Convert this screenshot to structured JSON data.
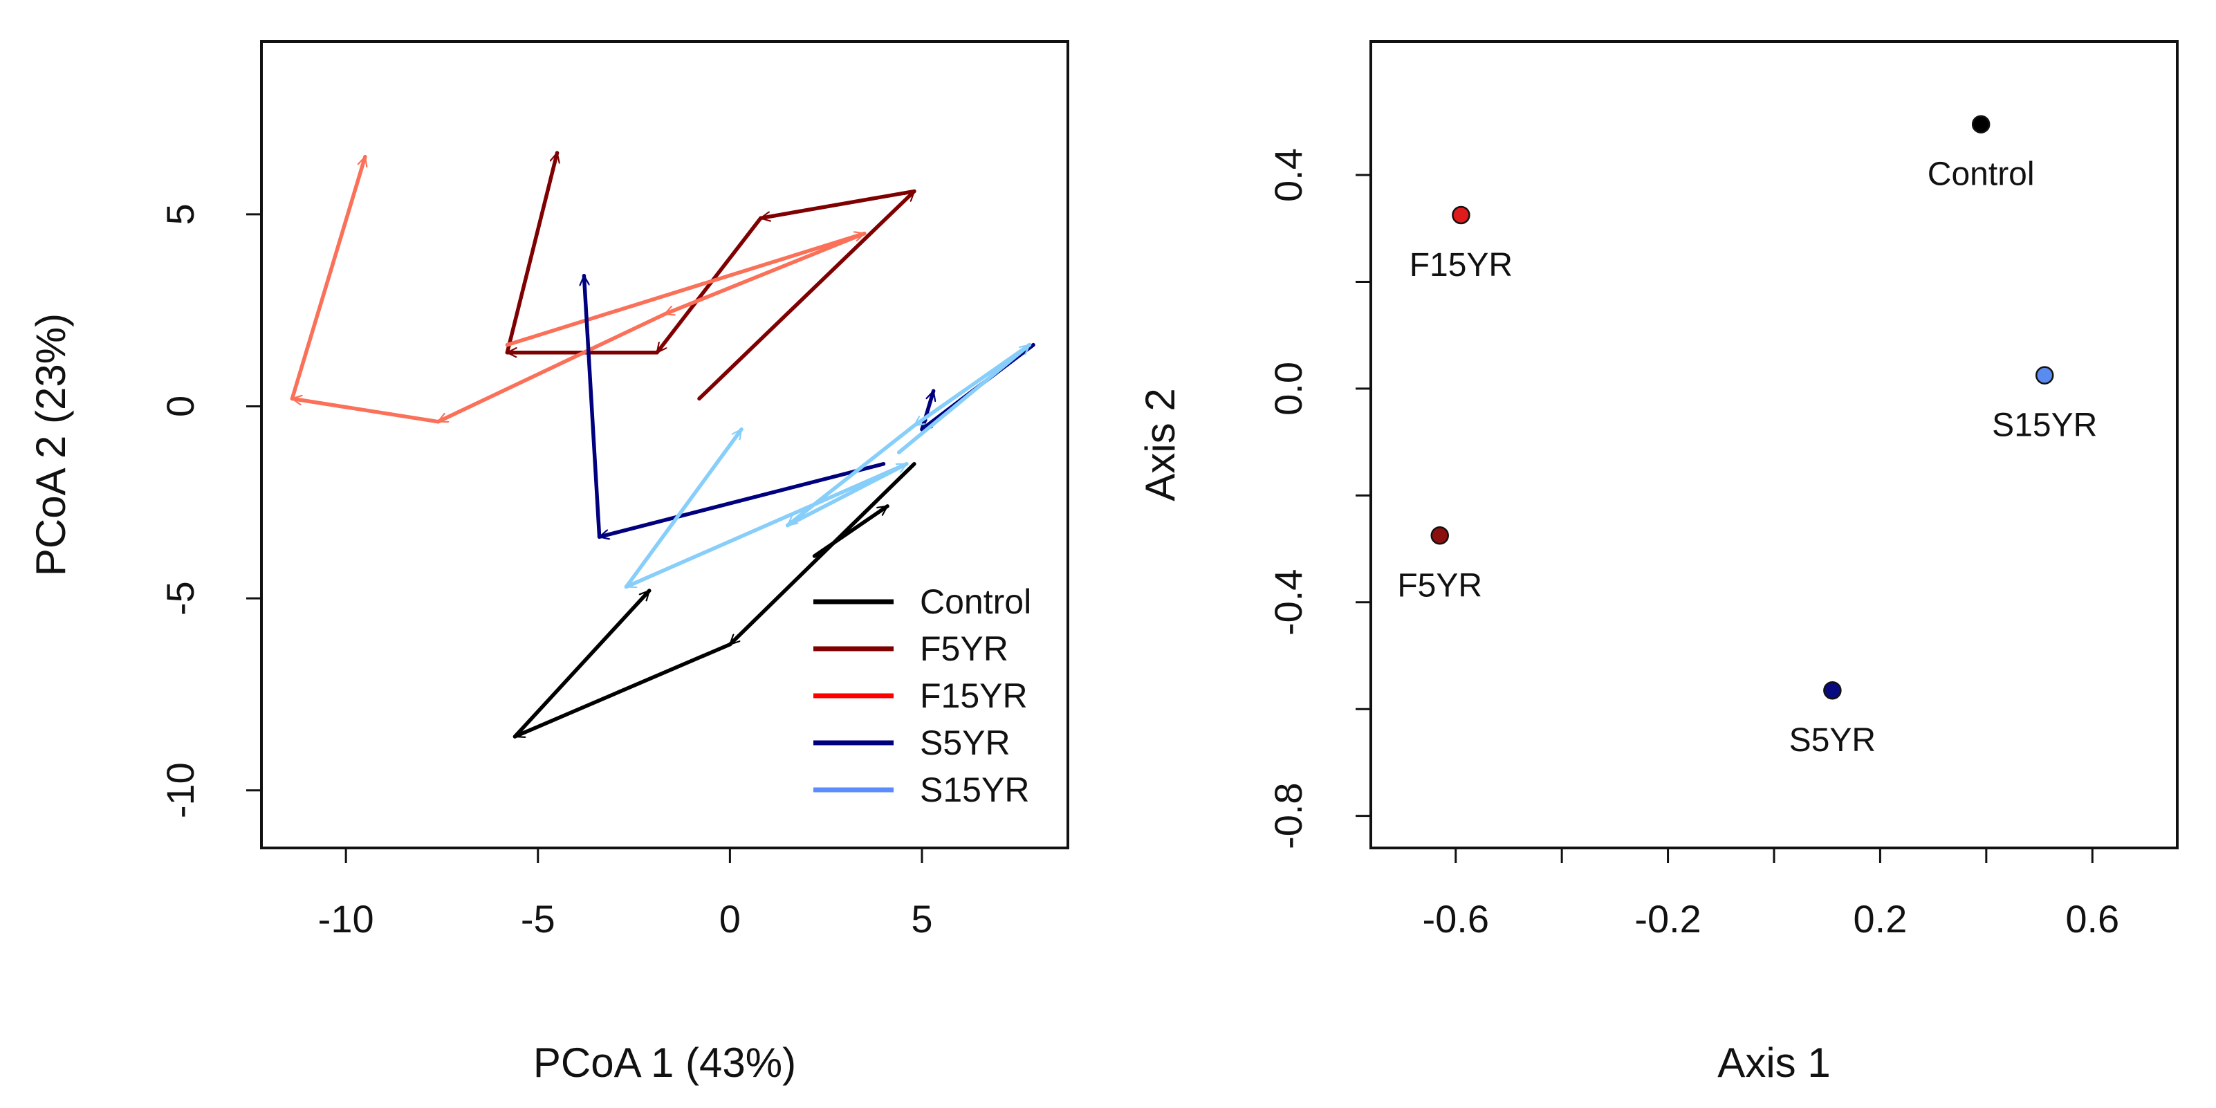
{
  "chart_data": [
    {
      "type": "line",
      "subtype": "arrow-trajectories",
      "xlabel": "PCoA 1 (43%)",
      "ylabel": "PCoA 2 (23%)",
      "xlim": [
        -12.2,
        8.8
      ],
      "ylim": [
        -11.5,
        9.5
      ],
      "xticks": [
        -10,
        -5,
        0,
        5
      ],
      "yticks": [
        -10,
        -5,
        0,
        5
      ],
      "xtick_labels": [
        "-10",
        "-5",
        "0",
        "5"
      ],
      "ytick_labels": [
        "-10",
        "-5",
        "0",
        "5"
      ],
      "legend_position": "bottom-right",
      "series": [
        {
          "name": "Control",
          "color": "#000000",
          "segments": [
            [
              [
                4.8,
                -1.5
              ],
              [
                0.0,
                -6.2
              ]
            ],
            [
              [
                0.0,
                -6.2
              ],
              [
                -5.6,
                -8.6
              ]
            ],
            [
              [
                -5.6,
                -8.6
              ],
              [
                -2.1,
                -4.8
              ]
            ],
            [
              [
                2.2,
                -3.9
              ],
              [
                4.1,
                -2.6
              ]
            ]
          ]
        },
        {
          "name": "F5YR",
          "color": "#7f0000",
          "segments": [
            [
              [
                -0.8,
                0.2
              ],
              [
                4.8,
                5.6
              ]
            ],
            [
              [
                4.8,
                5.6
              ],
              [
                0.8,
                4.9
              ]
            ],
            [
              [
                0.8,
                4.9
              ],
              [
                -1.9,
                1.4
              ]
            ],
            [
              [
                -1.9,
                1.4
              ],
              [
                -5.8,
                1.4
              ]
            ],
            [
              [
                -5.8,
                1.4
              ],
              [
                -4.5,
                6.6
              ]
            ]
          ]
        },
        {
          "name": "F15YR",
          "color": "#fa7058",
          "segments": [
            [
              [
                -5.8,
                1.6
              ],
              [
                3.5,
                4.5
              ]
            ],
            [
              [
                3.5,
                4.5
              ],
              [
                -1.7,
                2.4
              ]
            ],
            [
              [
                -1.7,
                2.4
              ],
              [
                -7.6,
                -0.4
              ]
            ],
            [
              [
                -7.6,
                -0.4
              ],
              [
                -11.4,
                0.2
              ]
            ],
            [
              [
                -11.4,
                0.2
              ],
              [
                -9.5,
                6.5
              ]
            ]
          ]
        },
        {
          "name": "S5YR",
          "color": "#00007f",
          "segments": [
            [
              [
                7.9,
                1.6
              ],
              [
                5.0,
                -0.6
              ]
            ],
            [
              [
                5.0,
                -0.6
              ],
              [
                5.3,
                0.4
              ]
            ],
            [
              [
                4.0,
                -1.5
              ],
              [
                -3.4,
                -3.4
              ]
            ],
            [
              [
                -3.4,
                -3.4
              ],
              [
                -3.8,
                3.4
              ]
            ]
          ]
        },
        {
          "name": "S15YR",
          "color": "#87cefa",
          "segments": [
            [
              [
                4.4,
                -1.2
              ],
              [
                7.8,
                1.6
              ]
            ],
            [
              [
                7.8,
                1.6
              ],
              [
                4.8,
                -0.5
              ]
            ],
            [
              [
                4.8,
                -0.5
              ],
              [
                1.5,
                -3.1
              ]
            ],
            [
              [
                1.5,
                -3.1
              ],
              [
                4.6,
                -1.5
              ]
            ],
            [
              [
                4.6,
                -1.5
              ],
              [
                -2.7,
                -4.7
              ]
            ],
            [
              [
                -2.7,
                -4.7
              ],
              [
                0.3,
                -0.6
              ]
            ]
          ]
        }
      ],
      "legend": [
        {
          "label": "Control",
          "color": "#000000"
        },
        {
          "label": "F5YR",
          "color": "#7f0000"
        },
        {
          "label": "F15YR",
          "color": "#ff0000"
        },
        {
          "label": "S5YR",
          "color": "#00007f"
        },
        {
          "label": "S15YR",
          "color": "#5a8cff"
        }
      ]
    },
    {
      "type": "scatter",
      "xlabel": "Axis 1",
      "ylabel": "Axis 2",
      "xlim": [
        -0.76,
        0.76
      ],
      "ylim": [
        -0.86,
        0.65
      ],
      "xticks": [
        -0.6,
        -0.4,
        -0.2,
        0.0,
        0.2,
        0.4,
        0.6
      ],
      "xtick_labels": [
        "-0.6",
        "",
        "-0.2",
        "",
        "0.2",
        "",
        "0.6"
      ],
      "yticks": [
        -0.8,
        -0.6,
        -0.4,
        -0.2,
        0.0,
        0.2,
        0.4
      ],
      "ytick_labels": [
        "-0.8",
        "",
        "-0.4",
        "",
        "0.0",
        "",
        "0.4"
      ],
      "points": [
        {
          "label": "Control",
          "x": 0.39,
          "y": 0.495,
          "color": "#000000"
        },
        {
          "label": "F15YR",
          "x": -0.59,
          "y": 0.325,
          "color": "#e01b1b"
        },
        {
          "label": "S15YR",
          "x": 0.51,
          "y": 0.025,
          "color": "#5a8cf0"
        },
        {
          "label": "F5YR",
          "x": -0.63,
          "y": -0.275,
          "color": "#8b0f0f"
        },
        {
          "label": "S5YR",
          "x": 0.11,
          "y": -0.565,
          "color": "#0a0a80"
        }
      ]
    }
  ]
}
